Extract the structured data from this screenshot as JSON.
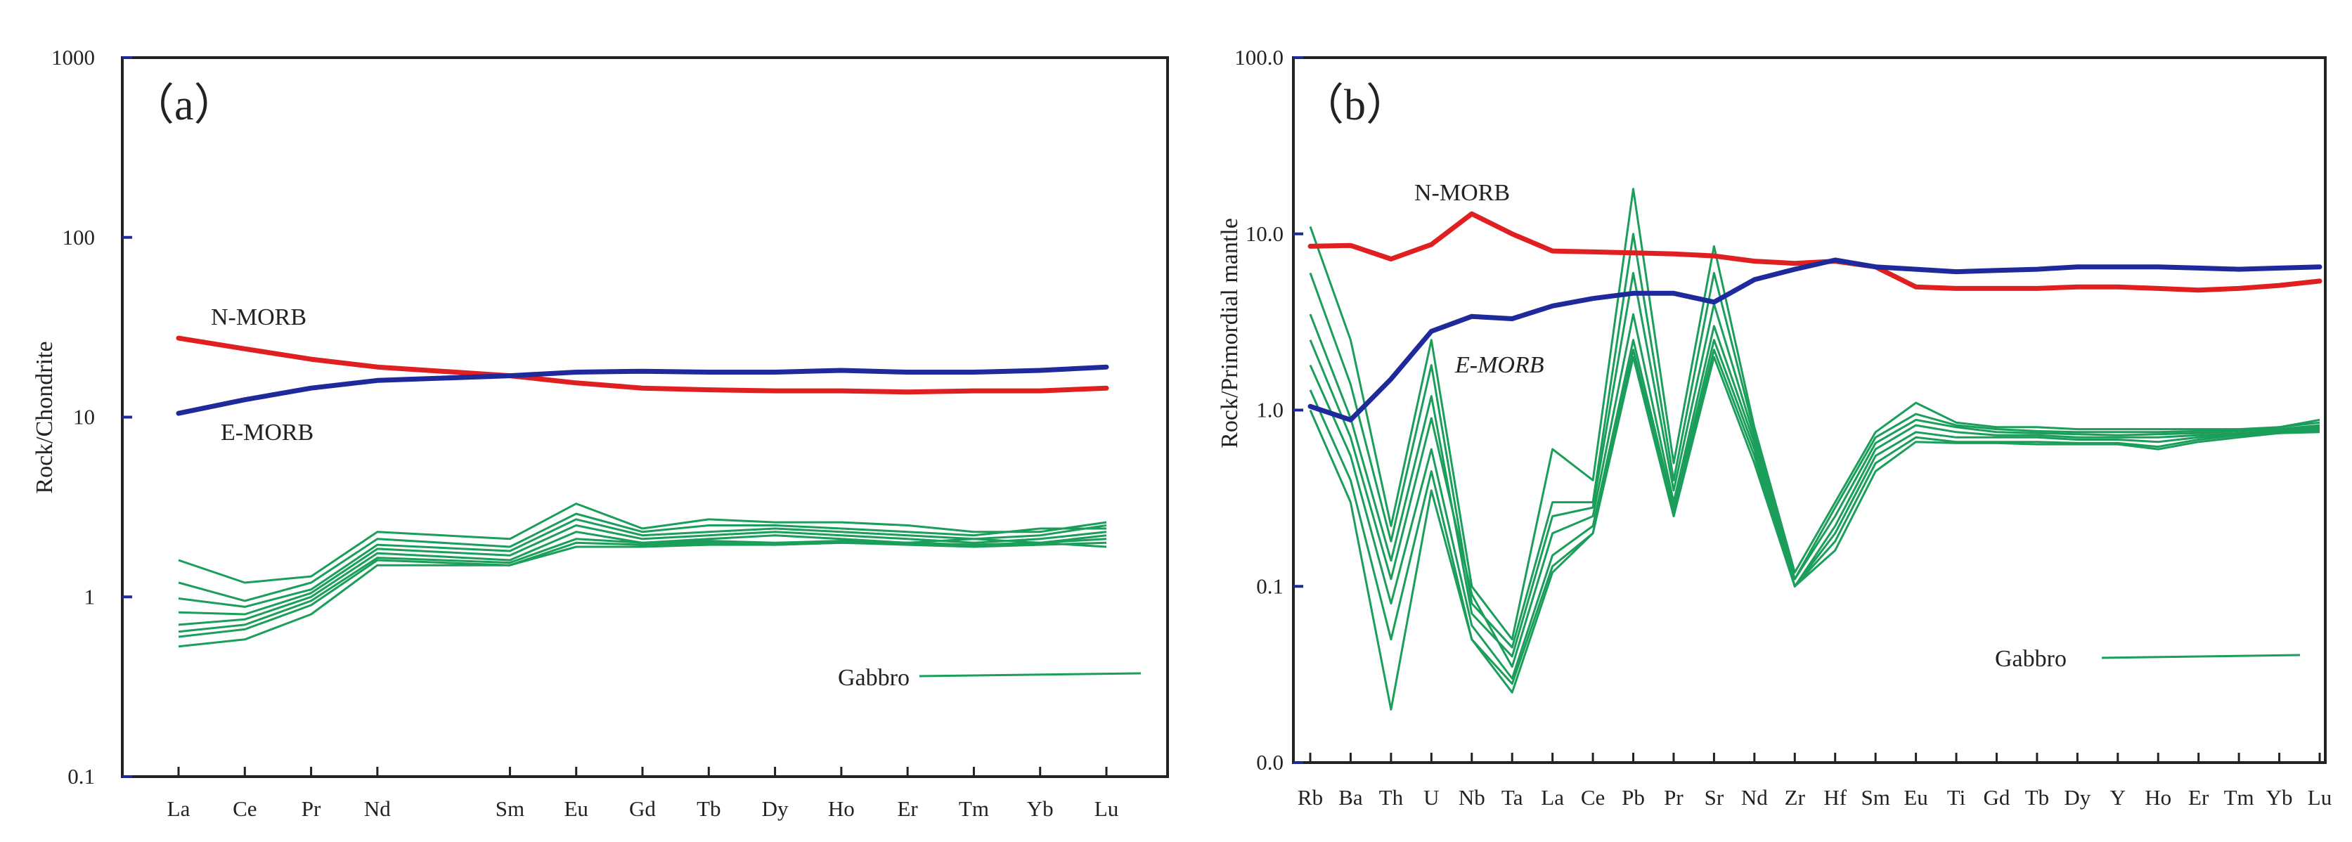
{
  "chart_data": [
    {
      "panel": "a",
      "type": "line",
      "panel_label": "（a）",
      "y_scale": "log",
      "ylabel": "Rock/Chondrite",
      "ylim": [
        0.1,
        1000
      ],
      "y_ticks": [
        0.1,
        1,
        10,
        100,
        1000
      ],
      "y_tick_labels": [
        "0.1",
        "1",
        "10",
        "100",
        "1000"
      ],
      "categories": [
        "La",
        "Ce",
        "Pr",
        "Nd",
        "Sm",
        "Eu",
        "Gd",
        "Tb",
        "Dy",
        "Ho",
        "Er",
        "Tm",
        "Yb",
        "Lu"
      ],
      "x_positions": [
        0,
        1,
        2,
        3,
        5,
        6,
        7,
        8,
        9,
        10,
        11,
        12,
        13,
        14
      ],
      "colors": {
        "nmorb": "#e02020",
        "emorb": "#1e2a9c",
        "gabbro": "#1a9e5a"
      },
      "reference": [
        {
          "name": "N-MORB",
          "label": "N-MORB",
          "color": "#e02020",
          "values": [
            27.5,
            24,
            21,
            19,
            17,
            15.5,
            14.5,
            14.2,
            14,
            14,
            13.8,
            14,
            14,
            14.5
          ]
        },
        {
          "name": "E-MORB",
          "label": "E-MORB",
          "color": "#1e2a9c",
          "values": [
            10.5,
            12.5,
            14.5,
            16,
            17,
            17.8,
            18,
            17.8,
            17.8,
            18.2,
            17.8,
            17.8,
            18.2,
            19
          ]
        }
      ],
      "samples": [
        {
          "name": "Gabbro 1",
          "values": [
            1.6,
            1.2,
            1.3,
            2.3,
            2.1,
            3.3,
            2.4,
            2.7,
            2.6,
            2.6,
            2.5,
            2.3,
            2.3,
            2.6
          ]
        },
        {
          "name": "Gabbro 2",
          "values": [
            1.2,
            0.95,
            1.2,
            2.1,
            1.9,
            2.9,
            2.3,
            2.5,
            2.5,
            2.4,
            2.3,
            2.2,
            2.4,
            2.4
          ]
        },
        {
          "name": "Gabbro 3",
          "values": [
            0.98,
            0.88,
            1.1,
            1.95,
            1.8,
            2.7,
            2.2,
            2.3,
            2.4,
            2.3,
            2.2,
            2.1,
            2.2,
            2.5
          ]
        },
        {
          "name": "Gabbro 4",
          "values": [
            0.82,
            0.8,
            1.05,
            1.85,
            1.7,
            2.5,
            2.1,
            2.2,
            2.3,
            2.2,
            2.1,
            2.0,
            2.1,
            2.3
          ]
        },
        {
          "name": "Gabbro 5",
          "values": [
            0.7,
            0.75,
            1.0,
            1.75,
            1.6,
            2.3,
            2.0,
            2.1,
            2.2,
            2.1,
            2.0,
            2.1,
            2.0,
            2.2
          ]
        },
        {
          "name": "Gabbro 6",
          "values": [
            0.64,
            0.7,
            0.95,
            1.65,
            1.55,
            2.1,
            2.0,
            2.05,
            2.0,
            2.05,
            2.0,
            1.95,
            2.0,
            2.1
          ]
        },
        {
          "name": "Gabbro 7",
          "values": [
            0.6,
            0.66,
            0.9,
            1.6,
            1.5,
            2.0,
            1.95,
            2.0,
            1.95,
            2.0,
            1.95,
            1.9,
            1.95,
            2.0
          ]
        },
        {
          "name": "Gabbro 8",
          "values": [
            0.53,
            0.58,
            0.8,
            1.5,
            1.5,
            1.9,
            1.9,
            1.95,
            1.95,
            2.0,
            2.0,
            1.95,
            2.0,
            1.9
          ]
        }
      ],
      "legend_label": "Gabbro",
      "legend_position": "lower-right"
    },
    {
      "panel": "b",
      "type": "line",
      "panel_label": "（b）",
      "y_scale": "log",
      "ylabel": "Rock/Primordial mantle",
      "ylim": [
        0.01,
        100
      ],
      "y_ticks": [
        0.01,
        0.1,
        1,
        10,
        100
      ],
      "y_tick_labels": [
        "0.0",
        "0.1",
        "1.0",
        "10.0",
        "100.0"
      ],
      "categories": [
        "Rb",
        "Ba",
        "Th",
        "U",
        "Nb",
        "Ta",
        "La",
        "Ce",
        "Pb",
        "Pr",
        "Sr",
        "Nd",
        "Zr",
        "Hf",
        "Sm",
        "Eu",
        "Ti",
        "Gd",
        "Tb",
        "Dy",
        "Y",
        "Ho",
        "Er",
        "Tm",
        "Yb",
        "Lu"
      ],
      "colors": {
        "nmorb": "#e02020",
        "emorb": "#1e2a9c",
        "gabbro": "#1a9e5a"
      },
      "reference": [
        {
          "name": "N-MORB",
          "label": "N-MORB",
          "color": "#e02020",
          "values": [
            8.5,
            8.6,
            7.2,
            8.7,
            13,
            10,
            8,
            7.9,
            7.8,
            7.7,
            7.5,
            7,
            6.8,
            7,
            6.5,
            5,
            4.9,
            4.9,
            4.9,
            5,
            5,
            4.9,
            4.8,
            4.9,
            5.1,
            5.4
          ]
        },
        {
          "name": "E-MORB",
          "label": "E-MORB",
          "color": "#1e2a9c",
          "values": [
            1.05,
            0.88,
            1.5,
            2.8,
            3.4,
            3.3,
            3.9,
            4.3,
            4.6,
            4.6,
            4.1,
            5.5,
            6.3,
            7.1,
            6.5,
            6.3,
            6.1,
            6.2,
            6.3,
            6.5,
            6.5,
            6.5,
            6.4,
            6.3,
            6.4,
            6.5
          ]
        }
      ],
      "samples": [
        {
          "name": "Gabbro 1",
          "values": [
            11,
            2.5,
            0.22,
            2.5,
            0.1,
            0.05,
            0.6,
            0.4,
            18,
            0.5,
            8.5,
            0.8,
            0.12,
            0.3,
            0.75,
            1.1,
            0.85,
            0.8,
            0.8,
            0.78,
            0.78,
            0.78,
            0.78,
            0.78,
            0.8,
            0.88
          ]
        },
        {
          "name": "Gabbro 2",
          "values": [
            6,
            1.4,
            0.18,
            1.8,
            0.08,
            0.045,
            0.3,
            0.3,
            10,
            0.4,
            6,
            0.75,
            0.11,
            0.28,
            0.7,
            0.95,
            0.82,
            0.78,
            0.76,
            0.75,
            0.75,
            0.75,
            0.76,
            0.77,
            0.8,
            0.85
          ]
        },
        {
          "name": "Gabbro 3",
          "values": [
            3.5,
            0.9,
            0.14,
            1.2,
            0.07,
            0.04,
            0.25,
            0.28,
            6,
            0.35,
            4,
            0.7,
            0.11,
            0.25,
            0.65,
            0.88,
            0.8,
            0.75,
            0.74,
            0.73,
            0.72,
            0.73,
            0.74,
            0.76,
            0.78,
            0.82
          ]
        },
        {
          "name": "Gabbro 4",
          "values": [
            2.5,
            0.7,
            0.11,
            0.9,
            0.09,
            0.035,
            0.2,
            0.25,
            3.5,
            0.3,
            3,
            0.65,
            0.1,
            0.22,
            0.6,
            0.82,
            0.75,
            0.72,
            0.72,
            0.7,
            0.7,
            0.7,
            0.72,
            0.74,
            0.76,
            0.8
          ]
        },
        {
          "name": "Gabbro 5",
          "values": [
            1.8,
            0.55,
            0.08,
            0.6,
            0.06,
            0.03,
            0.15,
            0.22,
            2.5,
            0.28,
            2.5,
            0.6,
            0.1,
            0.2,
            0.55,
            0.75,
            0.7,
            0.7,
            0.7,
            0.68,
            0.68,
            0.66,
            0.7,
            0.73,
            0.75,
            0.78
          ]
        },
        {
          "name": "Gabbro 6",
          "values": [
            1.3,
            0.4,
            0.05,
            0.45,
            0.05,
            0.028,
            0.13,
            0.2,
            2.2,
            0.26,
            2.2,
            0.55,
            0.1,
            0.18,
            0.5,
            0.7,
            0.66,
            0.66,
            0.66,
            0.65,
            0.65,
            0.62,
            0.68,
            0.72,
            0.74,
            0.76
          ]
        },
        {
          "name": "Gabbro 7",
          "values": [
            1.0,
            0.3,
            0.02,
            0.35,
            0.05,
            0.025,
            0.12,
            0.2,
            2.0,
            0.25,
            2.0,
            0.5,
            0.1,
            0.16,
            0.45,
            0.66,
            0.65,
            0.65,
            0.64,
            0.64,
            0.64,
            0.6,
            0.66,
            0.7,
            0.74,
            0.75
          ]
        }
      ],
      "legend_label": "Gabbro",
      "legend_position": "lower-right"
    }
  ]
}
